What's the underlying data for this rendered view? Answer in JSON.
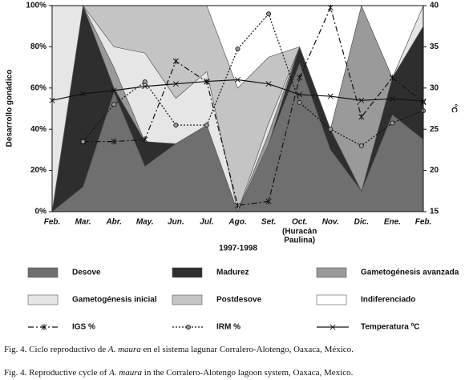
{
  "chart_data": {
    "type": "area",
    "stacked": true,
    "x_title": "1997-1998",
    "y_title": "Desarrollo gonádico",
    "y2_title": "°C",
    "categories": [
      "Feb.",
      "Mar.",
      "Abr.",
      "May.",
      "Jun.",
      "Jul.",
      "Ago.",
      "Set.",
      "Oct.",
      "Nov.",
      "Dic.",
      "Ene.",
      "Feb."
    ],
    "category_notes": [
      {
        "index": 8,
        "lines": [
          "(Huracán",
          "Paulina)"
        ]
      }
    ],
    "ylim": [
      0,
      100
    ],
    "yticks": [
      {
        "value": 0,
        "label": "0%"
      },
      {
        "value": 20,
        "label": "20%"
      },
      {
        "value": 40,
        "label": "40%"
      },
      {
        "value": 60,
        "label": "60%"
      },
      {
        "value": 80,
        "label": "80%"
      },
      {
        "value": 100,
        "label": "100%"
      }
    ],
    "y2lim": [
      15,
      40
    ],
    "y2ticks": [
      15,
      20,
      25,
      30,
      35,
      40
    ],
    "series": [
      {
        "name": "Desove",
        "type": "area",
        "color": "#6f6f6f",
        "values": [
          0,
          12,
          58,
          22,
          33,
          42,
          0,
          33,
          72,
          30,
          10,
          47,
          35
        ]
      },
      {
        "name": "Madurez",
        "type": "area",
        "color": "#2e2e2e",
        "values": [
          0,
          88,
          2,
          12,
          0,
          0,
          0,
          0,
          8,
          10,
          0,
          18,
          55
        ]
      },
      {
        "name": "Gametogénesis avanzada",
        "type": "area",
        "color": "#9a9a9a",
        "values": [
          0,
          0,
          10,
          0,
          0,
          0,
          0,
          5,
          0,
          0,
          90,
          0,
          0
        ]
      },
      {
        "name": "Gametogénesis inicial",
        "type": "area",
        "color": "#e6e6e6",
        "values": [
          100,
          0,
          10,
          43,
          22,
          26,
          0,
          5,
          0,
          0,
          0,
          0,
          10
        ]
      },
      {
        "name": "Postdesove",
        "type": "area",
        "color": "#c4c4c4",
        "values": [
          0,
          0,
          20,
          23,
          45,
          32,
          60,
          32,
          0,
          0,
          0,
          0,
          0
        ]
      },
      {
        "name": "Indiferenciado",
        "type": "area",
        "color": "#ffffff",
        "values": [
          0,
          0,
          0,
          0,
          0,
          0,
          40,
          25,
          20,
          60,
          0,
          35,
          0
        ]
      },
      {
        "name": "IGS %",
        "type": "line",
        "color": "#111111",
        "dash": "7 3 2 3",
        "marker": "star",
        "values": [
          null,
          34,
          34,
          35,
          73,
          63,
          3,
          5,
          65,
          99,
          46,
          65,
          53
        ]
      },
      {
        "name": "IRM %",
        "type": "line",
        "color": "#111111",
        "dash": "2 2",
        "marker": "circle",
        "values": [
          null,
          34,
          52,
          63,
          42,
          42,
          79,
          96,
          53,
          40,
          32,
          43,
          49
        ]
      },
      {
        "name": "Temperatura ºC",
        "type": "line",
        "axis": "y2",
        "color": "#111111",
        "dash": "",
        "marker": "x",
        "values": [
          28.5,
          29.3,
          29.7,
          30.2,
          30.5,
          30.8,
          31,
          30.5,
          29.2,
          29,
          28.5,
          28.7,
          28.4
        ]
      }
    ]
  },
  "captions": [
    [
      "Fig. 4. Ciclo reproductivo de ",
      "A. maura",
      " en el sistema lagunar Corralero-Alotengo, Oaxaca, México."
    ],
    [
      "Fig. 4. Reproductive cycle of ",
      "A. maura",
      " in the Corralero-Alotengo lagoon system, Oaxaca, Mexico."
    ]
  ]
}
